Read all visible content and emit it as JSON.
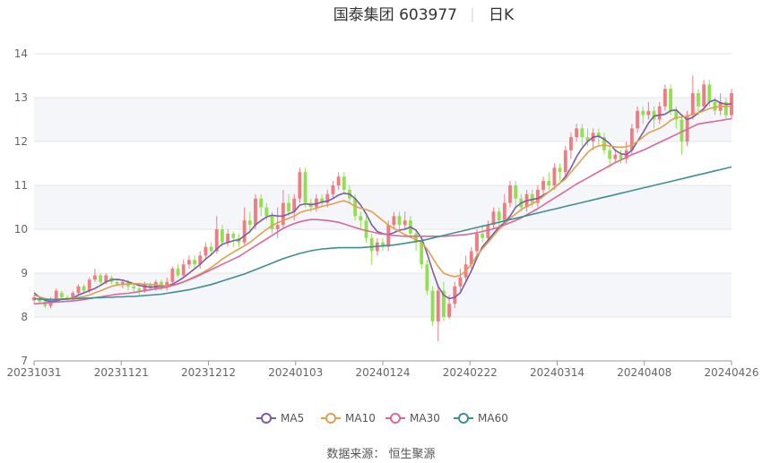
{
  "title": {
    "name": "国泰集团 603977",
    "period": "日K"
  },
  "source": "数据来源： 恒生聚源",
  "colors": {
    "up": "#f07c82",
    "down": "#91e14f",
    "ma5": "#7b5ba6",
    "ma10": "#e0a050",
    "ma30": "#d9679e",
    "ma60": "#3d8f93",
    "band": "#f5f6fa",
    "grid": "#e6e6e6"
  },
  "chart_data": {
    "type": "candlestick",
    "ylim": [
      7,
      14
    ],
    "yticks": [
      "7",
      "8",
      "9",
      "10",
      "11",
      "12",
      "13",
      "14"
    ],
    "xticks": [
      "20231031",
      "20231121",
      "20231212",
      "20240103",
      "20240124",
      "20240222",
      "20240314",
      "20240408",
      "20240426"
    ],
    "legend": [
      "MA5",
      "MA10",
      "MA30",
      "MA60"
    ],
    "legend_position": "bottom-center",
    "candles": [
      [
        8.38,
        8.45,
        8.3,
        8.5
      ],
      [
        8.4,
        8.35,
        8.3,
        8.45
      ],
      [
        8.35,
        8.25,
        8.2,
        8.4
      ],
      [
        8.25,
        8.4,
        8.2,
        8.45
      ],
      [
        8.4,
        8.6,
        8.35,
        8.65
      ],
      [
        8.55,
        8.45,
        8.4,
        8.6
      ],
      [
        8.45,
        8.4,
        8.35,
        8.5
      ],
      [
        8.4,
        8.55,
        8.35,
        8.6
      ],
      [
        8.55,
        8.7,
        8.5,
        8.75
      ],
      [
        8.7,
        8.6,
        8.55,
        8.75
      ],
      [
        8.6,
        8.85,
        8.55,
        8.9
      ],
      [
        8.85,
        8.95,
        8.8,
        9.1
      ],
      [
        8.95,
        8.8,
        8.75,
        9.0
      ],
      [
        8.8,
        8.95,
        8.75,
        9.0
      ],
      [
        8.9,
        8.8,
        8.75,
        8.95
      ],
      [
        8.8,
        8.75,
        8.7,
        8.85
      ],
      [
        8.75,
        8.8,
        8.65,
        8.85
      ],
      [
        8.8,
        8.7,
        8.6,
        8.85
      ],
      [
        8.7,
        8.65,
        8.55,
        8.75
      ],
      [
        8.65,
        8.6,
        8.5,
        8.7
      ],
      [
        8.6,
        8.75,
        8.55,
        8.8
      ],
      [
        8.75,
        8.65,
        8.6,
        8.8
      ],
      [
        8.65,
        8.8,
        8.6,
        8.85
      ],
      [
        8.8,
        8.7,
        8.6,
        8.85
      ],
      [
        8.7,
        8.8,
        8.6,
        8.9
      ],
      [
        8.8,
        9.1,
        8.75,
        9.15
      ],
      [
        9.1,
        8.95,
        8.9,
        9.2
      ],
      [
        8.95,
        9.2,
        8.9,
        9.3
      ],
      [
        9.2,
        9.3,
        9.1,
        9.4
      ],
      [
        9.3,
        9.2,
        9.1,
        9.4
      ],
      [
        9.2,
        9.4,
        9.1,
        9.5
      ],
      [
        9.4,
        9.6,
        9.3,
        9.7
      ],
      [
        9.6,
        9.5,
        9.4,
        9.7
      ],
      [
        9.5,
        10.0,
        9.45,
        10.3
      ],
      [
        10.0,
        9.7,
        9.6,
        10.1
      ],
      [
        9.7,
        9.9,
        9.6,
        10.0
      ],
      [
        9.9,
        9.8,
        9.6,
        9.95
      ],
      [
        9.8,
        9.7,
        9.6,
        9.9
      ],
      [
        9.7,
        10.2,
        9.65,
        10.5
      ],
      [
        10.2,
        10.1,
        9.9,
        10.4
      ],
      [
        10.1,
        10.7,
        10.0,
        10.8
      ],
      [
        10.7,
        10.5,
        10.3,
        10.8
      ],
      [
        10.5,
        10.3,
        10.2,
        10.6
      ],
      [
        10.3,
        10.0,
        9.9,
        10.4
      ],
      [
        10.0,
        10.1,
        9.8,
        10.5
      ],
      [
        10.1,
        10.6,
        10.0,
        10.9
      ],
      [
        10.6,
        10.4,
        10.3,
        10.8
      ],
      [
        10.4,
        10.7,
        10.2,
        10.8
      ],
      [
        10.7,
        11.3,
        10.6,
        11.4
      ],
      [
        11.3,
        10.6,
        10.5,
        11.4
      ],
      [
        10.6,
        10.5,
        10.4,
        10.7
      ],
      [
        10.5,
        10.7,
        10.4,
        10.8
      ],
      [
        10.7,
        10.6,
        10.5,
        10.8
      ],
      [
        10.6,
        10.8,
        10.5,
        10.9
      ],
      [
        10.8,
        11.0,
        10.7,
        11.1
      ],
      [
        11.0,
        11.2,
        10.9,
        11.3
      ],
      [
        11.2,
        10.9,
        10.8,
        11.3
      ],
      [
        10.9,
        10.7,
        10.6,
        11.0
      ],
      [
        10.7,
        10.3,
        10.2,
        10.8
      ],
      [
        10.3,
        10.2,
        10.0,
        10.4
      ],
      [
        10.2,
        9.8,
        9.7,
        10.3
      ],
      [
        9.8,
        9.5,
        9.2,
        9.9
      ],
      [
        9.5,
        9.7,
        9.4,
        9.8
      ],
      [
        9.7,
        9.6,
        9.5,
        9.8
      ],
      [
        9.6,
        10.1,
        9.5,
        10.2
      ],
      [
        10.1,
        10.3,
        10.0,
        10.4
      ],
      [
        10.3,
        10.1,
        10.0,
        10.4
      ],
      [
        10.1,
        10.2,
        10.0,
        10.4
      ],
      [
        10.2,
        9.9,
        9.8,
        10.3
      ],
      [
        9.9,
        9.7,
        9.5,
        10.0
      ],
      [
        9.7,
        9.2,
        9.1,
        9.8
      ],
      [
        9.2,
        8.6,
        8.5,
        9.3
      ],
      [
        8.6,
        7.9,
        7.8,
        8.7
      ],
      [
        7.9,
        8.6,
        7.45,
        8.7
      ],
      [
        8.6,
        8.0,
        7.9,
        8.8
      ],
      [
        8.0,
        8.3,
        7.95,
        8.5
      ],
      [
        8.3,
        8.7,
        8.2,
        8.8
      ],
      [
        8.7,
        8.9,
        8.6,
        9.1
      ],
      [
        8.9,
        9.2,
        8.8,
        9.4
      ],
      [
        9.2,
        9.5,
        9.1,
        9.6
      ],
      [
        9.5,
        9.9,
        9.4,
        10.0
      ],
      [
        9.9,
        9.8,
        9.7,
        10.1
      ],
      [
        9.8,
        10.1,
        9.7,
        10.2
      ],
      [
        10.1,
        10.4,
        10.0,
        10.5
      ],
      [
        10.4,
        10.2,
        10.0,
        10.5
      ],
      [
        10.2,
        10.6,
        10.1,
        10.8
      ],
      [
        10.6,
        11.0,
        10.5,
        11.1
      ],
      [
        11.0,
        10.7,
        10.5,
        11.1
      ],
      [
        10.7,
        10.5,
        10.4,
        10.8
      ],
      [
        10.5,
        10.8,
        10.4,
        10.9
      ],
      [
        10.8,
        10.6,
        10.5,
        10.9
      ],
      [
        10.6,
        10.9,
        10.5,
        11.0
      ],
      [
        10.9,
        11.1,
        10.8,
        11.2
      ],
      [
        11.1,
        11.0,
        10.9,
        11.3
      ],
      [
        11.0,
        11.4,
        10.9,
        11.5
      ],
      [
        11.4,
        11.3,
        11.1,
        11.5
      ],
      [
        11.3,
        11.8,
        11.2,
        11.9
      ],
      [
        11.8,
        12.1,
        11.6,
        12.2
      ],
      [
        12.1,
        12.3,
        12.0,
        12.4
      ],
      [
        12.3,
        12.1,
        11.9,
        12.4
      ],
      [
        12.1,
        12.0,
        11.9,
        12.3
      ],
      [
        12.0,
        12.2,
        11.8,
        12.3
      ],
      [
        12.2,
        12.1,
        11.9,
        12.3
      ],
      [
        12.1,
        11.8,
        11.7,
        12.2
      ],
      [
        11.8,
        11.6,
        11.4,
        11.9
      ],
      [
        11.6,
        11.7,
        11.5,
        11.8
      ],
      [
        11.7,
        11.6,
        11.5,
        11.8
      ],
      [
        11.6,
        11.8,
        11.5,
        12.0
      ],
      [
        11.8,
        12.3,
        11.7,
        12.4
      ],
      [
        12.3,
        12.7,
        12.2,
        12.8
      ],
      [
        12.7,
        12.6,
        12.4,
        12.8
      ],
      [
        12.6,
        12.7,
        12.5,
        12.9
      ],
      [
        12.7,
        12.5,
        12.3,
        12.8
      ],
      [
        12.5,
        12.8,
        12.4,
        12.9
      ],
      [
        12.8,
        13.2,
        12.7,
        13.3
      ],
      [
        13.2,
        12.7,
        12.6,
        13.3
      ],
      [
        12.7,
        12.5,
        12.3,
        12.8
      ],
      [
        12.5,
        12.0,
        11.7,
        12.6
      ],
      [
        12.0,
        12.6,
        11.9,
        12.7
      ],
      [
        12.6,
        13.1,
        12.5,
        13.5
      ],
      [
        13.1,
        12.8,
        12.6,
        13.2
      ],
      [
        12.8,
        13.3,
        12.7,
        13.4
      ],
      [
        13.3,
        12.9,
        12.8,
        13.4
      ],
      [
        12.9,
        12.7,
        12.6,
        13.0
      ],
      [
        12.7,
        12.9,
        12.6,
        13.1
      ],
      [
        12.9,
        12.6,
        12.5,
        13.0
      ],
      [
        12.6,
        13.1,
        12.5,
        13.2
      ]
    ],
    "ma5": [
      8.55,
      8.45,
      8.38,
      8.35,
      8.37,
      8.4,
      8.41,
      8.43,
      8.5,
      8.55,
      8.6,
      8.65,
      8.72,
      8.8,
      8.85,
      8.86,
      8.84,
      8.8,
      8.76,
      8.72,
      8.7,
      8.68,
      8.69,
      8.7,
      8.71,
      8.75,
      8.82,
      8.9,
      9.0,
      9.1,
      9.2,
      9.32,
      9.42,
      9.55,
      9.66,
      9.7,
      9.74,
      9.76,
      9.85,
      9.95,
      10.1,
      10.2,
      10.28,
      10.32,
      10.3,
      10.3,
      10.35,
      10.4,
      10.55,
      10.58,
      10.56,
      10.58,
      10.62,
      10.64,
      10.7,
      10.78,
      10.82,
      10.8,
      10.7,
      10.55,
      10.35,
      10.1,
      9.95,
      9.9,
      9.88,
      9.92,
      9.98,
      10.0,
      10.05,
      9.98,
      9.8,
      9.45,
      9.05,
      8.7,
      8.5,
      8.42,
      8.45,
      8.55,
      8.8,
      9.05,
      9.35,
      9.6,
      9.75,
      9.9,
      10.05,
      10.15,
      10.3,
      10.5,
      10.6,
      10.65,
      10.68,
      10.7,
      10.78,
      10.85,
      10.95,
      11.05,
      11.2,
      11.4,
      11.65,
      11.85,
      12.0,
      12.1,
      12.12,
      12.05,
      11.95,
      11.8,
      11.72,
      11.7,
      11.8,
      12.0,
      12.2,
      12.42,
      12.58,
      12.6,
      12.62,
      12.7,
      12.72,
      12.6,
      12.5,
      12.55,
      12.65,
      12.75,
      12.9,
      12.95,
      12.88,
      12.85,
      12.86
    ],
    "ma10": [
      8.5,
      8.46,
      8.42,
      8.4,
      8.4,
      8.41,
      8.42,
      8.43,
      8.45,
      8.47,
      8.5,
      8.55,
      8.6,
      8.65,
      8.7,
      8.73,
      8.74,
      8.75,
      8.76,
      8.76,
      8.75,
      8.74,
      8.73,
      8.72,
      8.71,
      8.72,
      8.75,
      8.8,
      8.86,
      8.92,
      8.98,
      9.05,
      9.13,
      9.22,
      9.32,
      9.4,
      9.48,
      9.55,
      9.62,
      9.7,
      9.8,
      9.9,
      10.0,
      10.08,
      10.15,
      10.2,
      10.25,
      10.3,
      10.38,
      10.42,
      10.45,
      10.48,
      10.52,
      10.55,
      10.58,
      10.62,
      10.65,
      10.6,
      10.52,
      10.48,
      10.45,
      10.4,
      10.3,
      10.2,
      10.1,
      10.02,
      9.95,
      9.88,
      9.82,
      9.76,
      9.7,
      9.55,
      9.35,
      9.15,
      9.0,
      8.95,
      8.92,
      8.95,
      9.05,
      9.2,
      9.4,
      9.55,
      9.7,
      9.85,
      10.0,
      10.12,
      10.25,
      10.35,
      10.45,
      10.52,
      10.58,
      10.65,
      10.75,
      10.85,
      10.95,
      11.05,
      11.15,
      11.3,
      11.45,
      11.6,
      11.75,
      11.85,
      11.9,
      11.92,
      11.9,
      11.88,
      11.87,
      11.88,
      11.92,
      12.0,
      12.1,
      12.2,
      12.25,
      12.3,
      12.38,
      12.48,
      12.55,
      12.55,
      12.58,
      12.62,
      12.65,
      12.7,
      12.75,
      12.78,
      12.8,
      12.8,
      12.81
    ],
    "ma30": [
      8.3,
      8.31,
      8.32,
      8.33,
      8.34,
      8.35,
      8.36,
      8.37,
      8.38,
      8.4,
      8.42,
      8.44,
      8.46,
      8.48,
      8.5,
      8.52,
      8.53,
      8.54,
      8.56,
      8.58,
      8.6,
      8.62,
      8.64,
      8.66,
      8.68,
      8.72,
      8.76,
      8.8,
      8.85,
      8.9,
      8.96,
      9.02,
      9.08,
      9.14,
      9.2,
      9.26,
      9.32,
      9.38,
      9.46,
      9.54,
      9.62,
      9.7,
      9.78,
      9.86,
      9.94,
      10.02,
      10.08,
      10.13,
      10.17,
      10.2,
      10.22,
      10.22,
      10.21,
      10.2,
      10.18,
      10.16,
      10.12,
      10.08,
      10.04,
      10.0,
      9.97,
      9.94,
      9.91,
      9.89,
      9.88,
      9.86,
      9.85,
      9.84,
      9.84,
      9.84,
      9.84,
      9.84,
      9.84,
      9.84,
      9.84,
      9.85,
      9.86,
      9.87,
      9.88,
      9.9,
      9.92,
      9.95,
      9.98,
      10.01,
      10.05,
      10.1,
      10.15,
      10.2,
      10.26,
      10.33,
      10.4,
      10.47,
      10.55,
      10.63,
      10.71,
      10.79,
      10.87,
      10.95,
      11.03,
      11.1,
      11.17,
      11.24,
      11.31,
      11.38,
      11.45,
      11.52,
      11.58,
      11.64,
      11.7,
      11.75,
      11.8,
      11.86,
      11.92,
      11.98,
      12.04,
      12.1,
      12.16,
      12.22,
      12.28,
      12.34,
      12.4,
      12.42,
      12.44,
      12.46,
      12.48,
      12.5,
      12.52
    ],
    "ma60": [
      8.42,
      8.41,
      8.4,
      8.4,
      8.4,
      8.41,
      8.41,
      8.42,
      8.42,
      8.43,
      8.43,
      8.44,
      8.44,
      8.45,
      8.45,
      8.46,
      8.46,
      8.47,
      8.47,
      8.48,
      8.49,
      8.5,
      8.51,
      8.52,
      8.54,
      8.56,
      8.58,
      8.6,
      8.62,
      8.65,
      8.68,
      8.71,
      8.74,
      8.78,
      8.82,
      8.86,
      8.9,
      8.94,
      8.98,
      9.03,
      9.08,
      9.13,
      9.18,
      9.23,
      9.28,
      9.33,
      9.37,
      9.41,
      9.45,
      9.48,
      9.51,
      9.53,
      9.55,
      9.56,
      9.57,
      9.58,
      9.58,
      9.58,
      9.58,
      9.58,
      9.59,
      9.6,
      9.61,
      9.62,
      9.63,
      9.64,
      9.66,
      9.68,
      9.7,
      9.72,
      9.74,
      9.77,
      9.8,
      9.83,
      9.86,
      9.89,
      9.92,
      9.95,
      9.98,
      10.01,
      10.04,
      10.07,
      10.1,
      10.13,
      10.16,
      10.19,
      10.22,
      10.25,
      10.28,
      10.31,
      10.34,
      10.37,
      10.4,
      10.43,
      10.46,
      10.49,
      10.52,
      10.55,
      10.58,
      10.61,
      10.64,
      10.67,
      10.7,
      10.73,
      10.76,
      10.79,
      10.82,
      10.85,
      10.88,
      10.91,
      10.94,
      10.97,
      11.0,
      11.03,
      11.06,
      11.09,
      11.12,
      11.15,
      11.18,
      11.21,
      11.24,
      11.27,
      11.3,
      11.33,
      11.36,
      11.39,
      11.42
    ]
  }
}
